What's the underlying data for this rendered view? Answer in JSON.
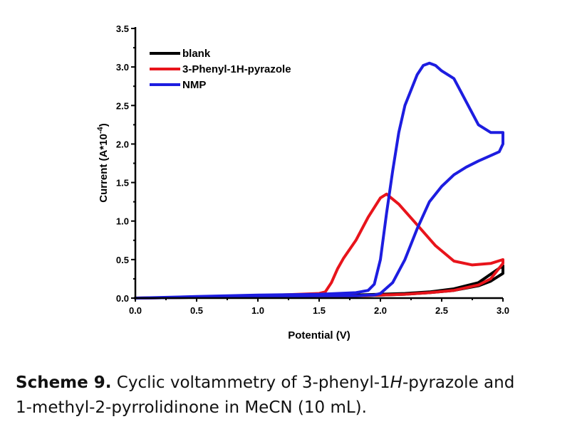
{
  "chart_data": {
    "type": "line",
    "xlabel": "Potential (V)",
    "ylabel": "Current (A*10",
    "ylabel_exponent": "-4",
    "ylabel_suffix": ")",
    "xlim": [
      0.0,
      3.0
    ],
    "ylim": [
      0.0,
      3.5
    ],
    "xticks": [
      0.0,
      0.5,
      1.0,
      1.5,
      2.0,
      2.5,
      3.0
    ],
    "xtick_labels": [
      "0.0",
      "0.5",
      "1.0",
      "1.5",
      "2.0",
      "2.5",
      "3.0"
    ],
    "yticks": [
      0.0,
      0.5,
      1.0,
      1.5,
      2.0,
      2.5,
      3.0,
      3.5
    ],
    "ytick_labels": [
      "0.0",
      "0.5",
      "1.0",
      "1.5",
      "2.0",
      "2.5",
      "3.0",
      "3.5"
    ],
    "grid": false,
    "legend_position": "top-left",
    "series": [
      {
        "name": "blank",
        "color": "#000000",
        "x": [
          0.0,
          0.5,
          1.0,
          1.5,
          1.8,
          2.0,
          2.2,
          2.4,
          2.6,
          2.8,
          2.9,
          3.0,
          3.0,
          2.8,
          2.6,
          2.4,
          2.2,
          2.0,
          1.8,
          1.5,
          1.0,
          0.5,
          0.0
        ],
        "y": [
          0.0,
          0.01,
          0.02,
          0.03,
          0.03,
          0.04,
          0.05,
          0.07,
          0.1,
          0.16,
          0.22,
          0.32,
          0.42,
          0.2,
          0.12,
          0.08,
          0.06,
          0.05,
          0.04,
          0.03,
          0.02,
          0.01,
          0.0
        ]
      },
      {
        "name": "3-Phenyl-1H-pyrazole",
        "color": "#e8141b",
        "x": [
          0.0,
          0.5,
          1.0,
          1.5,
          1.55,
          1.6,
          1.65,
          1.7,
          1.8,
          1.9,
          2.0,
          2.05,
          2.15,
          2.3,
          2.45,
          2.6,
          2.75,
          2.9,
          3.0,
          3.0,
          2.9,
          2.8,
          2.6,
          2.4,
          2.2,
          2.0,
          1.8,
          1.5,
          1.0,
          0.5,
          0.0
        ],
        "y": [
          0.0,
          0.01,
          0.03,
          0.06,
          0.08,
          0.2,
          0.38,
          0.52,
          0.75,
          1.05,
          1.3,
          1.35,
          1.22,
          0.95,
          0.68,
          0.48,
          0.43,
          0.45,
          0.5,
          0.45,
          0.25,
          0.17,
          0.1,
          0.07,
          0.05,
          0.04,
          0.03,
          0.03,
          0.02,
          0.01,
          0.0
        ]
      },
      {
        "name": "NMP",
        "color": "#1d1de0",
        "x": [
          0.0,
          0.5,
          1.0,
          1.5,
          1.8,
          1.9,
          1.95,
          2.0,
          2.05,
          2.1,
          2.15,
          2.2,
          2.3,
          2.35,
          2.4,
          2.45,
          2.5,
          2.6,
          2.7,
          2.8,
          2.9,
          3.0,
          3.0,
          2.97,
          2.9,
          2.8,
          2.7,
          2.6,
          2.5,
          2.4,
          2.3,
          2.2,
          2.1,
          2.0,
          1.95,
          1.9,
          1.8,
          1.5,
          1.0,
          0.5,
          0.0
        ],
        "y": [
          0.0,
          0.02,
          0.04,
          0.05,
          0.07,
          0.1,
          0.18,
          0.5,
          1.1,
          1.65,
          2.15,
          2.5,
          2.9,
          3.02,
          3.05,
          3.02,
          2.95,
          2.85,
          2.55,
          2.25,
          2.15,
          2.15,
          2.0,
          1.9,
          1.85,
          1.78,
          1.7,
          1.6,
          1.45,
          1.25,
          0.9,
          0.5,
          0.2,
          0.06,
          0.04,
          0.04,
          0.03,
          0.03,
          0.02,
          0.01,
          0.0
        ]
      }
    ]
  },
  "caption": {
    "label": "Scheme 9.",
    "line1_a": " Cyclic voltammetry of 3-phenyl-1",
    "line1_italic": "H",
    "line1_b": "-pyrazole and",
    "line2": "1-methyl-2-pyrrolidinone in MeCN (10 mL)."
  }
}
